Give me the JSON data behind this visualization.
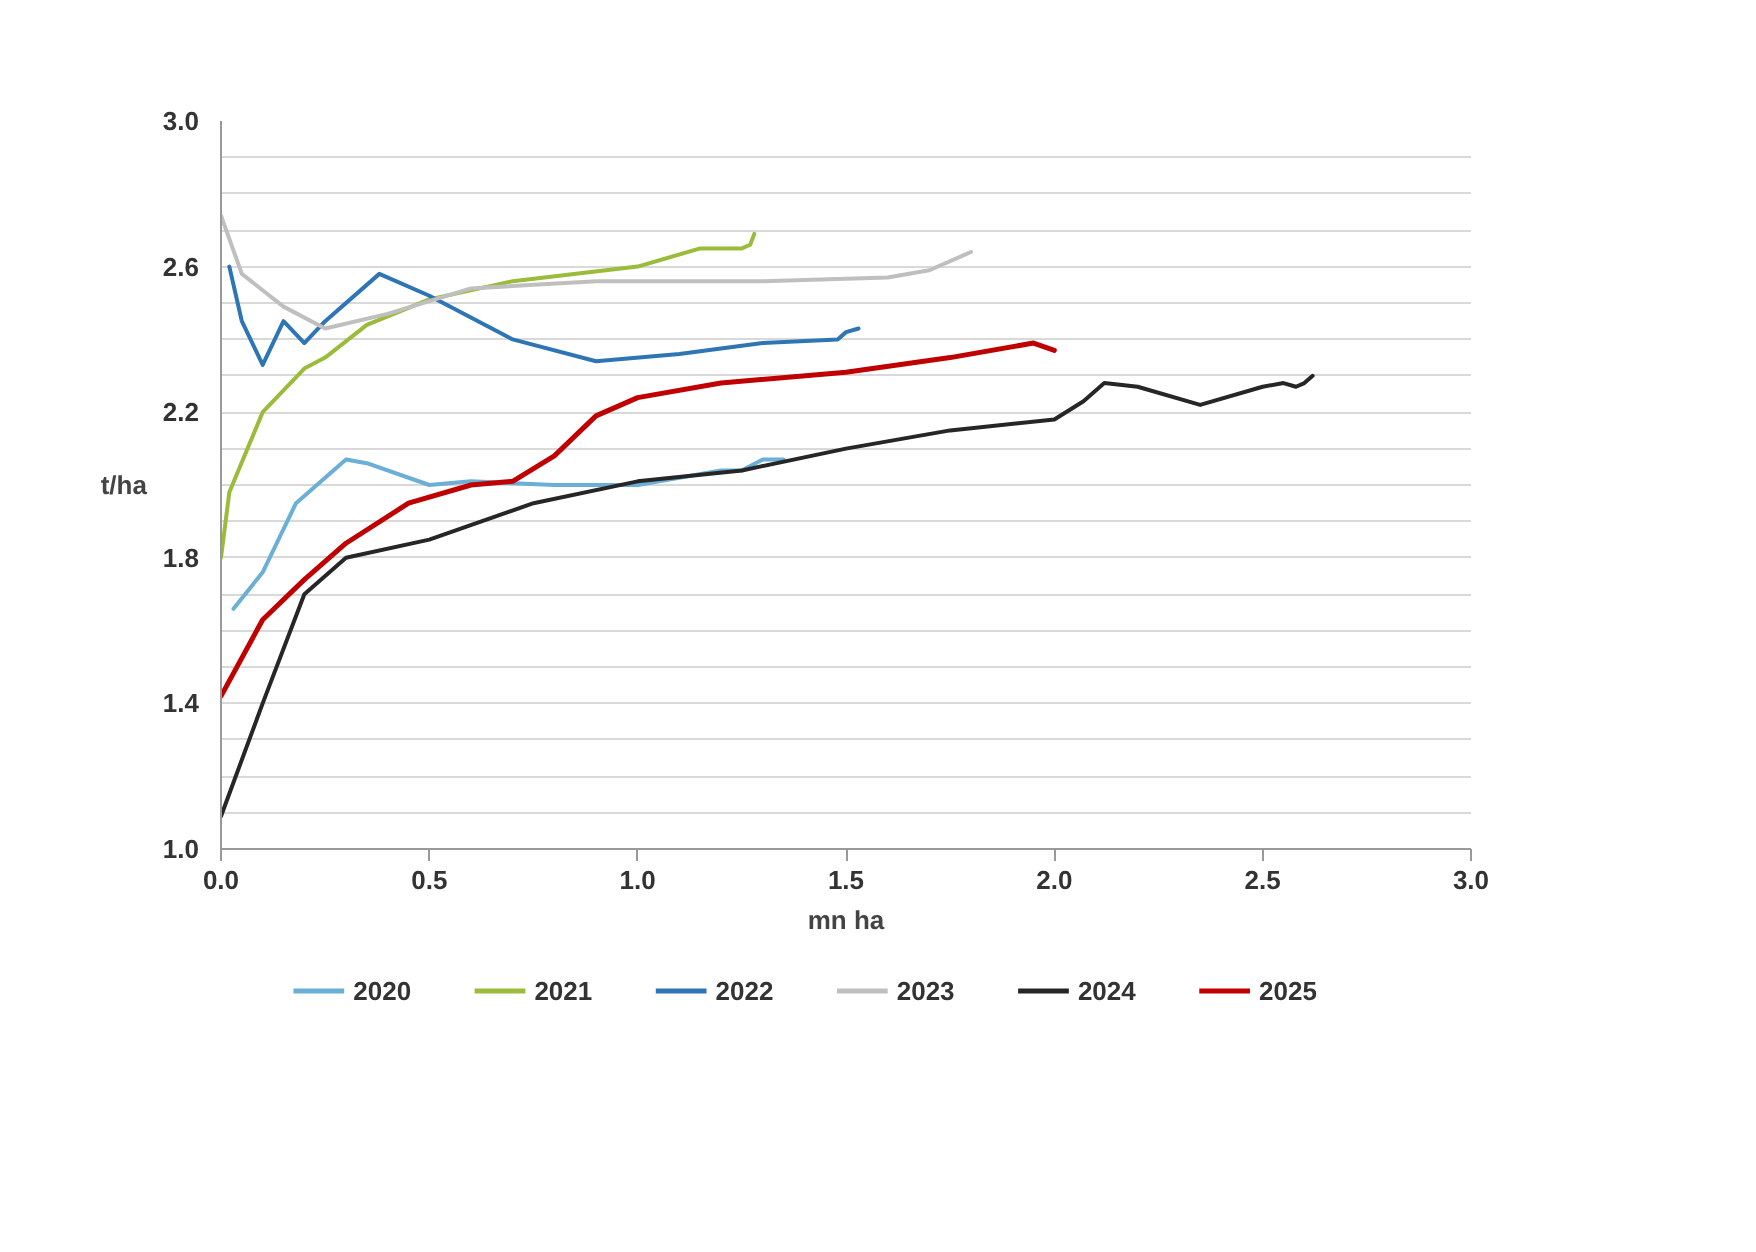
{
  "chart_data": {
    "type": "line",
    "xlabel": "mn ha",
    "ylabel": "t/ha",
    "xlim": [
      0,
      3
    ],
    "ylim": [
      1.0,
      3.0
    ],
    "xticks": [
      {
        "value": 0,
        "label": "0.0"
      },
      0.5,
      {
        "value": 1,
        "label": "1.0"
      },
      1.5,
      {
        "value": 2,
        "label": "2.0"
      },
      2.5,
      {
        "value": 3,
        "label": "3.0"
      }
    ],
    "yticks": [
      {
        "value": 1.0,
        "label": "1.0"
      },
      {
        "value": 1.1,
        "label": null
      },
      {
        "value": 1.2,
        "label": null
      },
      {
        "value": 1.3,
        "label": null
      },
      1.4,
      {
        "value": 1.5,
        "label": null
      },
      {
        "value": 1.6,
        "label": null
      },
      {
        "value": 1.7,
        "label": null
      },
      1.8,
      {
        "value": 1.9,
        "label": null
      },
      {
        "value": 2.0,
        "label": null
      },
      {
        "value": 2.1,
        "label": null
      },
      2.2,
      {
        "value": 2.3,
        "label": null
      },
      {
        "value": 2.4,
        "label": null
      },
      {
        "value": 2.5,
        "label": null
      },
      2.6,
      {
        "value": 2.7,
        "label": null
      },
      {
        "value": 2.8,
        "label": null
      },
      {
        "value": 2.9,
        "label": null
      },
      {
        "value": 3.0,
        "label": "3.0"
      }
    ],
    "grid": "y",
    "legend": "bottom",
    "marker": "none",
    "line_style": "solid",
    "series": [
      {
        "name": "2020",
        "color": "#6baed6",
        "x": [
          0.03,
          0.1,
          0.18,
          0.3,
          0.35,
          0.5,
          0.6,
          0.8,
          1.0,
          1.1,
          1.2,
          1.25,
          1.3,
          1.35
        ],
        "values": [
          1.66,
          1.76,
          1.95,
          2.07,
          2.06,
          2.0,
          2.01,
          2.0,
          2.0,
          2.02,
          2.04,
          2.04,
          2.07,
          2.07
        ]
      },
      {
        "name": "2021",
        "color": "#9bbb3b",
        "x": [
          0,
          0.02,
          0.1,
          0.2,
          0.25,
          0.35,
          0.5,
          0.7,
          1.0,
          1.15,
          1.25,
          1.27,
          1.28
        ],
        "values": [
          1.8,
          1.98,
          2.2,
          2.32,
          2.35,
          2.44,
          2.51,
          2.56,
          2.6,
          2.65,
          2.65,
          2.66,
          2.69
        ]
      },
      {
        "name": "2022",
        "color": "#2e75b6",
        "x": [
          0.02,
          0.05,
          0.1,
          0.15,
          0.2,
          0.25,
          0.38,
          0.5,
          0.7,
          0.9,
          1.1,
          1.3,
          1.48,
          1.5,
          1.53
        ],
        "values": [
          2.6,
          2.45,
          2.33,
          2.45,
          2.39,
          2.45,
          2.58,
          2.52,
          2.4,
          2.34,
          2.36,
          2.39,
          2.4,
          2.42,
          2.43
        ]
      },
      {
        "name": "2023",
        "color": "#bfbfbf",
        "x": [
          0,
          0.05,
          0.15,
          0.25,
          0.4,
          0.6,
          0.9,
          1.3,
          1.6,
          1.7,
          1.78,
          1.8
        ],
        "values": [
          2.74,
          2.58,
          2.49,
          2.43,
          2.47,
          2.54,
          2.56,
          2.56,
          2.57,
          2.59,
          2.63,
          2.64
        ]
      },
      {
        "name": "2024",
        "color": "#262626",
        "x": [
          0,
          0.1,
          0.2,
          0.3,
          0.5,
          0.75,
          1.0,
          1.25,
          1.5,
          1.75,
          2.0,
          2.07,
          2.12,
          2.2,
          2.35,
          2.5,
          2.55,
          2.58,
          2.6,
          2.62
        ],
        "values": [
          1.09,
          1.4,
          1.7,
          1.8,
          1.85,
          1.95,
          2.01,
          2.04,
          2.1,
          2.15,
          2.18,
          2.23,
          2.28,
          2.27,
          2.22,
          2.27,
          2.28,
          2.27,
          2.28,
          2.3
        ]
      },
      {
        "name": "2025",
        "color": "#c00000",
        "x": [
          0,
          0.1,
          0.2,
          0.3,
          0.45,
          0.6,
          0.7,
          0.8,
          0.9,
          1.0,
          1.2,
          1.5,
          1.75,
          1.95,
          2.0
        ],
        "values": [
          1.42,
          1.63,
          1.74,
          1.84,
          1.95,
          2.0,
          2.01,
          2.08,
          2.19,
          2.24,
          2.28,
          2.31,
          2.35,
          2.39,
          2.37
        ]
      }
    ]
  }
}
